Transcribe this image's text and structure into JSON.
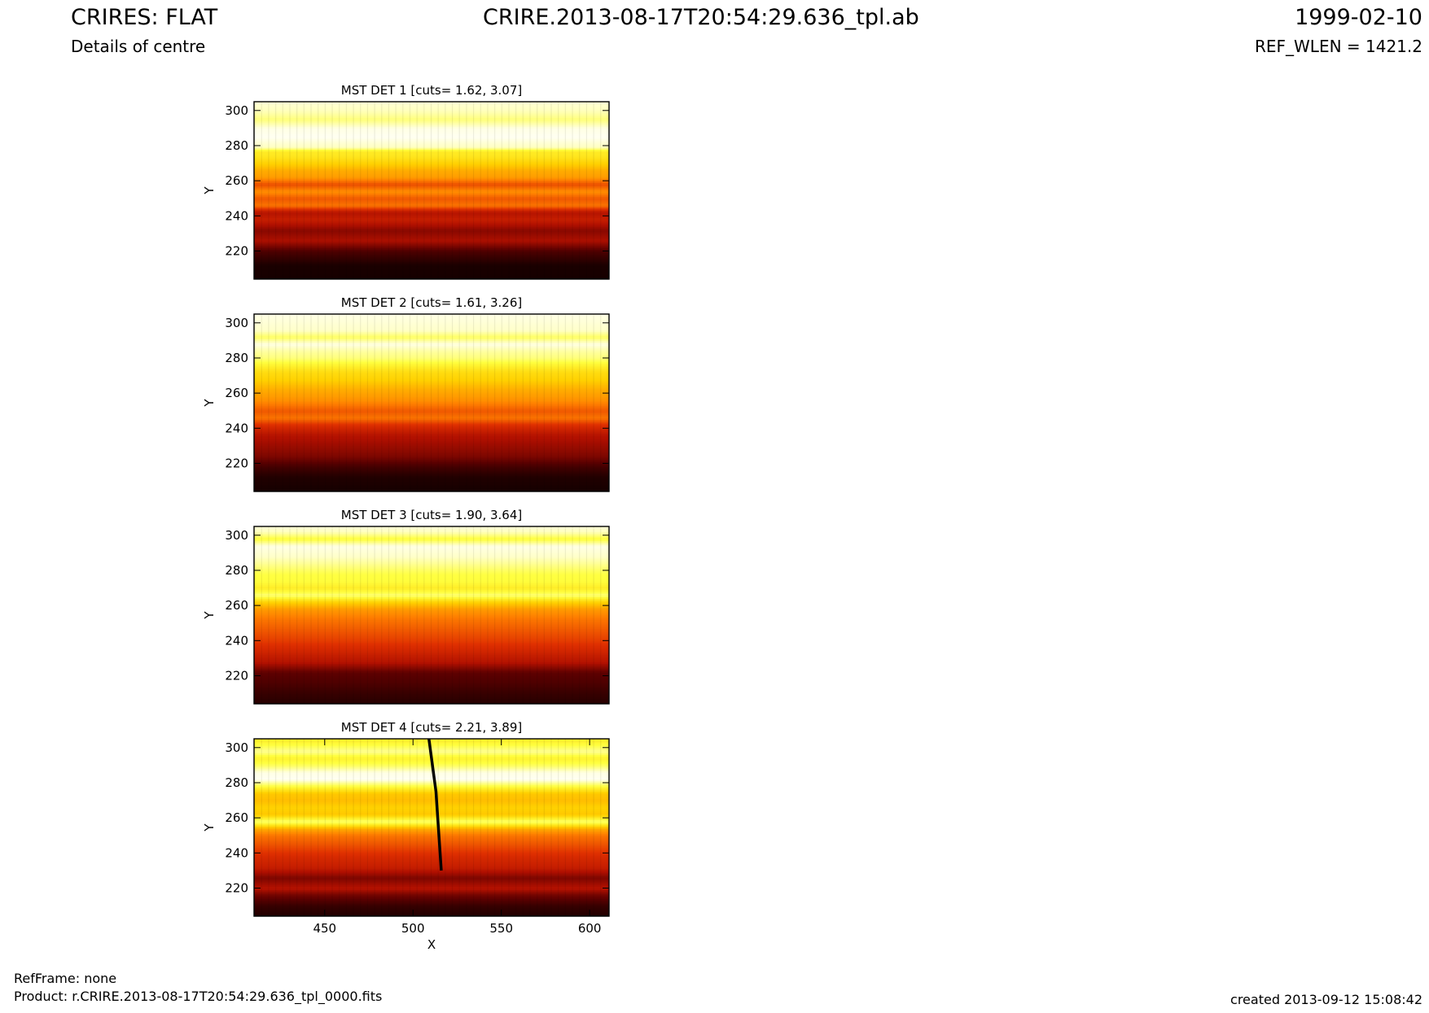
{
  "header": {
    "title": "CRIRES: FLAT",
    "subtitle": "Details of centre",
    "filename": "CRIRE.2013-08-17T20:54:29.636_tpl.ab",
    "date": "1999-02-10",
    "ref_wlen": "REF_WLEN = 1421.2"
  },
  "footer": {
    "refframe": "RefFrame: none",
    "product": "Product: r.CRIRE.2013-08-17T20:54:29.636_tpl_0000.fits",
    "created": "created 2013-09-12 15:08:42"
  },
  "colors": {
    "colormap": [
      "#0a0000",
      "#5a0000",
      "#b01000",
      "#e03000",
      "#ff8000",
      "#ffd000",
      "#ffff40",
      "#ffffff"
    ],
    "background": "#ffffff"
  },
  "chart_data": [
    {
      "type": "heatmap",
      "title": "MST DET 1 [cuts= 1.62, 3.07]",
      "ylabel": "Y",
      "xlabel": "",
      "xlim": [
        410,
        611
      ],
      "ylim": [
        204,
        305
      ],
      "yticks": [
        220,
        240,
        260,
        280,
        300
      ],
      "xticks": [],
      "colormap": "hot",
      "row_profile": [
        [
          204,
          0.02
        ],
        [
          212,
          0.03
        ],
        [
          220,
          0.12
        ],
        [
          226,
          0.28
        ],
        [
          232,
          0.22
        ],
        [
          238,
          0.35
        ],
        [
          242,
          0.3
        ],
        [
          246,
          0.55
        ],
        [
          250,
          0.5
        ],
        [
          254,
          0.6
        ],
        [
          258,
          0.48
        ],
        [
          262,
          0.62
        ],
        [
          266,
          0.65
        ],
        [
          270,
          0.72
        ],
        [
          274,
          0.78
        ],
        [
          277,
          0.8
        ],
        [
          279,
          0.95
        ],
        [
          285,
          0.99
        ],
        [
          290,
          0.98
        ],
        [
          295,
          0.9
        ],
        [
          300,
          0.95
        ],
        [
          305,
          0.97
        ]
      ]
    },
    {
      "type": "heatmap",
      "title": "MST DET 2 [cuts= 1.61, 3.26]",
      "ylabel": "Y",
      "xlabel": "",
      "xlim": [
        410,
        611
      ],
      "ylim": [
        204,
        305
      ],
      "yticks": [
        220,
        240,
        260,
        280,
        300
      ],
      "xticks": [],
      "colormap": "hot",
      "row_profile": [
        [
          204,
          0.02
        ],
        [
          212,
          0.04
        ],
        [
          218,
          0.1
        ],
        [
          224,
          0.2
        ],
        [
          230,
          0.25
        ],
        [
          236,
          0.3
        ],
        [
          242,
          0.42
        ],
        [
          246,
          0.55
        ],
        [
          250,
          0.5
        ],
        [
          256,
          0.6
        ],
        [
          262,
          0.65
        ],
        [
          268,
          0.72
        ],
        [
          272,
          0.75
        ],
        [
          276,
          0.82
        ],
        [
          280,
          0.9
        ],
        [
          284,
          0.93
        ],
        [
          288,
          0.98
        ],
        [
          292,
          0.88
        ],
        [
          296,
          0.96
        ],
        [
          305,
          0.98
        ]
      ]
    },
    {
      "type": "heatmap",
      "title": "MST DET 3 [cuts= 1.90, 3.64]",
      "ylabel": "Y",
      "xlabel": "",
      "xlim": [
        410,
        611
      ],
      "ylim": [
        204,
        305
      ],
      "yticks": [
        220,
        240,
        260,
        280,
        300
      ],
      "xticks": [],
      "colormap": "hot",
      "row_profile": [
        [
          204,
          0.05
        ],
        [
          210,
          0.08
        ],
        [
          216,
          0.12
        ],
        [
          222,
          0.15
        ],
        [
          228,
          0.3
        ],
        [
          234,
          0.38
        ],
        [
          240,
          0.45
        ],
        [
          246,
          0.5
        ],
        [
          252,
          0.55
        ],
        [
          258,
          0.62
        ],
        [
          262,
          0.72
        ],
        [
          266,
          0.9
        ],
        [
          270,
          0.8
        ],
        [
          274,
          0.85
        ],
        [
          278,
          0.86
        ],
        [
          282,
          0.9
        ],
        [
          288,
          0.96
        ],
        [
          294,
          0.98
        ],
        [
          298,
          0.85
        ],
        [
          302,
          0.95
        ],
        [
          305,
          0.97
        ]
      ]
    },
    {
      "type": "heatmap",
      "title": "MST DET 4 [cuts= 2.21, 3.89]",
      "ylabel": "Y",
      "xlabel": "X",
      "xlim": [
        410,
        611
      ],
      "ylim": [
        204,
        305
      ],
      "yticks": [
        220,
        240,
        260,
        280,
        300
      ],
      "xticks": [
        450,
        500,
        550,
        600
      ],
      "colormap": "hot",
      "row_profile": [
        [
          204,
          0.04
        ],
        [
          210,
          0.08
        ],
        [
          216,
          0.18
        ],
        [
          220,
          0.3
        ],
        [
          226,
          0.2
        ],
        [
          232,
          0.35
        ],
        [
          238,
          0.4
        ],
        [
          244,
          0.48
        ],
        [
          250,
          0.55
        ],
        [
          254,
          0.65
        ],
        [
          258,
          0.9
        ],
        [
          262,
          0.7
        ],
        [
          266,
          0.72
        ],
        [
          270,
          0.68
        ],
        [
          274,
          0.7
        ],
        [
          278,
          0.85
        ],
        [
          282,
          0.99
        ],
        [
          286,
          0.98
        ],
        [
          290,
          0.88
        ],
        [
          294,
          0.82
        ],
        [
          298,
          0.92
        ],
        [
          302,
          0.85
        ],
        [
          305,
          0.8
        ]
      ],
      "dark_trace": [
        [
          509,
          305
        ],
        [
          511,
          290
        ],
        [
          513,
          275
        ],
        [
          514,
          260
        ],
        [
          515,
          245
        ],
        [
          516,
          230
        ]
      ]
    }
  ]
}
